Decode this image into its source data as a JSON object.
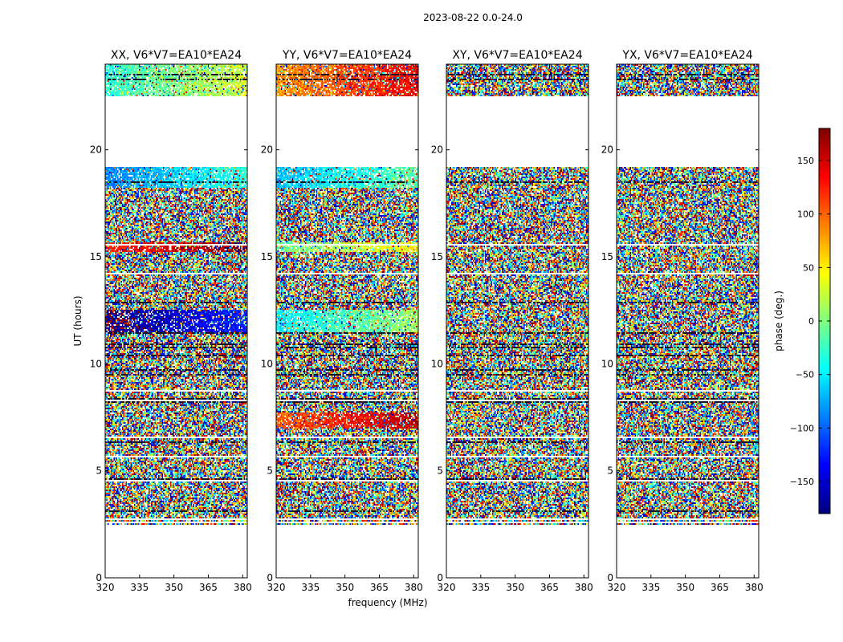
{
  "figure_title": "2023-08-22 0.0-24.0",
  "chart_data": {
    "type": "heatmap",
    "title": "2023-08-22 0.0-24.0",
    "xlabel": "frequency (MHz)",
    "ylabel": "UT (hours)",
    "xlim": [
      320,
      382
    ],
    "ylim": [
      0,
      24
    ],
    "xticks": [
      320,
      335,
      350,
      365,
      380
    ],
    "yticks": [
      0,
      5,
      10,
      15,
      20
    ],
    "data_ranges_hours": [
      [
        2.5,
        19.2
      ],
      [
        22.5,
        24.0
      ]
    ],
    "panels": [
      {
        "title": "XX, V6*V7=EA10*EA24",
        "coherent_segments": [
          [
            22.5,
            24.0,
            0
          ],
          [
            15.2,
            15.7,
            150
          ],
          [
            11.5,
            12.5,
            -150
          ],
          [
            18.2,
            19.2,
            -60
          ]
        ]
      },
      {
        "title": "YY, V6*V7=EA10*EA24",
        "coherent_segments": [
          [
            22.5,
            24.0,
            110
          ],
          [
            15.2,
            15.7,
            20
          ],
          [
            11.5,
            12.5,
            -20
          ],
          [
            7.0,
            7.7,
            130
          ],
          [
            18.2,
            19.2,
            -40
          ]
        ]
      },
      {
        "title": "XY, V6*V7=EA10*EA24",
        "coherent_segments": []
      },
      {
        "title": "YX, V6*V7=EA10*EA24",
        "coherent_segments": []
      }
    ],
    "colorbar": {
      "label": "phase (deg.)",
      "range": [
        -180,
        180
      ],
      "ticks": [
        -150,
        -100,
        -50,
        0,
        50,
        100,
        150
      ],
      "colormap": "jet"
    }
  }
}
